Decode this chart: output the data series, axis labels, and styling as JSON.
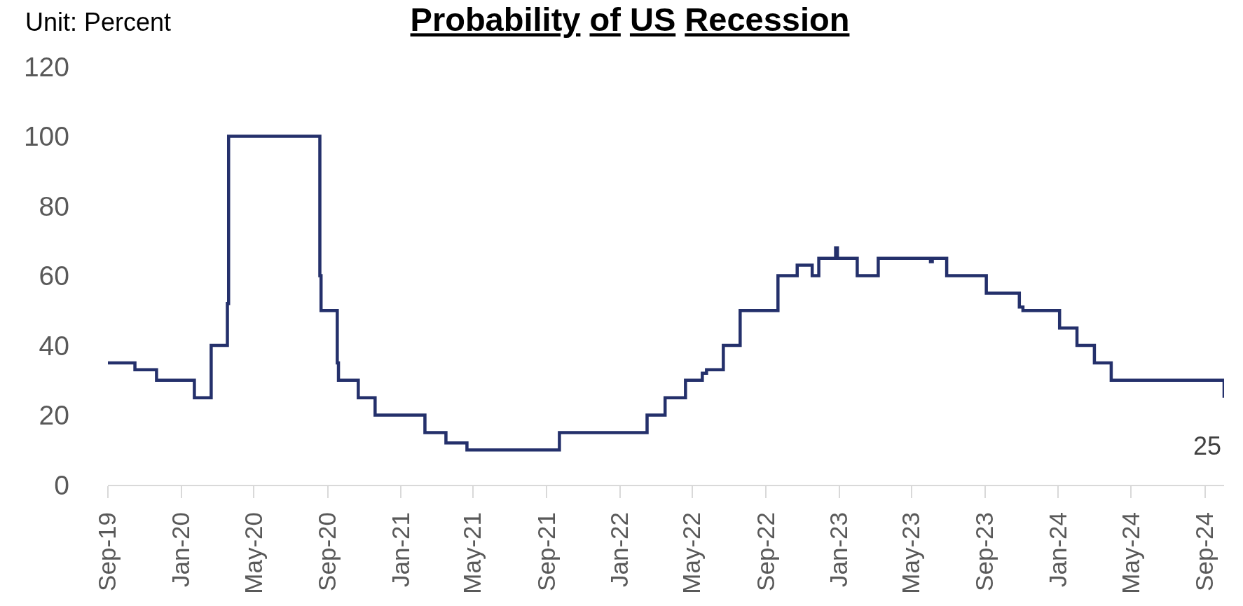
{
  "chart_data": {
    "type": "step",
    "title": "Probability of US Recession",
    "ylabel": "Unit: Percent",
    "x": [
      "2019-09-01",
      "2019-10-16",
      "2019-11-21",
      "2020-01-23",
      "2020-02-20",
      "2020-03-18",
      "2020-03-20",
      "2020-08-19",
      "2020-08-21",
      "2020-09-17",
      "2020-09-19",
      "2020-10-22",
      "2020-11-19",
      "2021-02-10",
      "2021-03-17",
      "2021-04-21",
      "2021-09-22",
      "2022-02-15",
      "2022-03-17",
      "2022-04-20",
      "2022-05-18",
      "2022-05-25",
      "2022-06-22",
      "2022-07-20",
      "2022-09-21",
      "2022-10-23",
      "2022-11-17",
      "2022-11-28",
      "2022-12-26",
      "2022-12-29",
      "2023-01-31",
      "2023-03-07",
      "2023-06-02",
      "2023-06-05",
      "2023-06-29",
      "2023-09-03",
      "2023-10-28",
      "2023-11-03",
      "2024-01-03",
      "2024-02-01",
      "2024-03-01",
      "2024-03-29",
      "2024-10-03"
    ],
    "values": [
      35,
      33,
      30,
      25,
      40,
      52,
      100,
      60,
      50,
      35,
      30,
      25,
      20,
      15,
      12,
      10,
      15,
      20,
      25,
      30,
      32,
      33,
      40,
      50,
      60,
      63,
      60,
      65,
      68,
      65,
      60,
      65,
      64,
      65,
      60,
      55,
      51,
      50,
      45,
      40,
      35,
      30,
      25
    ],
    "value_labels": [
      null,
      null,
      null,
      null,
      null,
      null,
      null,
      null,
      null,
      null,
      null,
      null,
      null,
      null,
      null,
      null,
      null,
      null,
      null,
      null,
      null,
      null,
      null,
      null,
      null,
      null,
      null,
      null,
      null,
      null,
      null,
      null,
      null,
      null,
      null,
      null,
      null,
      null,
      null,
      null,
      null,
      null,
      "25"
    ],
    "color": "#24306b",
    "line_style": "solid",
    "xlim": [
      "2019-09-01",
      "2024-10-03"
    ],
    "xticks": [
      {
        "value": "2019-09-01",
        "label": "Sep-19"
      },
      {
        "value": "2020-01-01",
        "label": "Jan-20"
      },
      {
        "value": "2020-05-01",
        "label": "May-20"
      },
      {
        "value": "2020-09-01",
        "label": "Sep-20"
      },
      {
        "value": "2021-01-01",
        "label": "Jan-21"
      },
      {
        "value": "2021-05-01",
        "label": "May-21"
      },
      {
        "value": "2021-09-01",
        "label": "Sep-21"
      },
      {
        "value": "2022-01-01",
        "label": "Jan-22"
      },
      {
        "value": "2022-05-01",
        "label": "May-22"
      },
      {
        "value": "2022-09-01",
        "label": "Sep-22"
      },
      {
        "value": "2023-01-01",
        "label": "Jan-23"
      },
      {
        "value": "2023-05-01",
        "label": "May-23"
      },
      {
        "value": "2023-09-01",
        "label": "Sep-23"
      },
      {
        "value": "2024-01-01",
        "label": "Jan-24"
      },
      {
        "value": "2024-05-01",
        "label": "May-24"
      },
      {
        "value": "2024-09-01",
        "label": "Sep-24"
      }
    ],
    "ylim": [
      0,
      120
    ],
    "yticks": [
      0,
      20,
      40,
      60,
      80,
      100,
      120
    ],
    "grid": false,
    "legend": false
  }
}
